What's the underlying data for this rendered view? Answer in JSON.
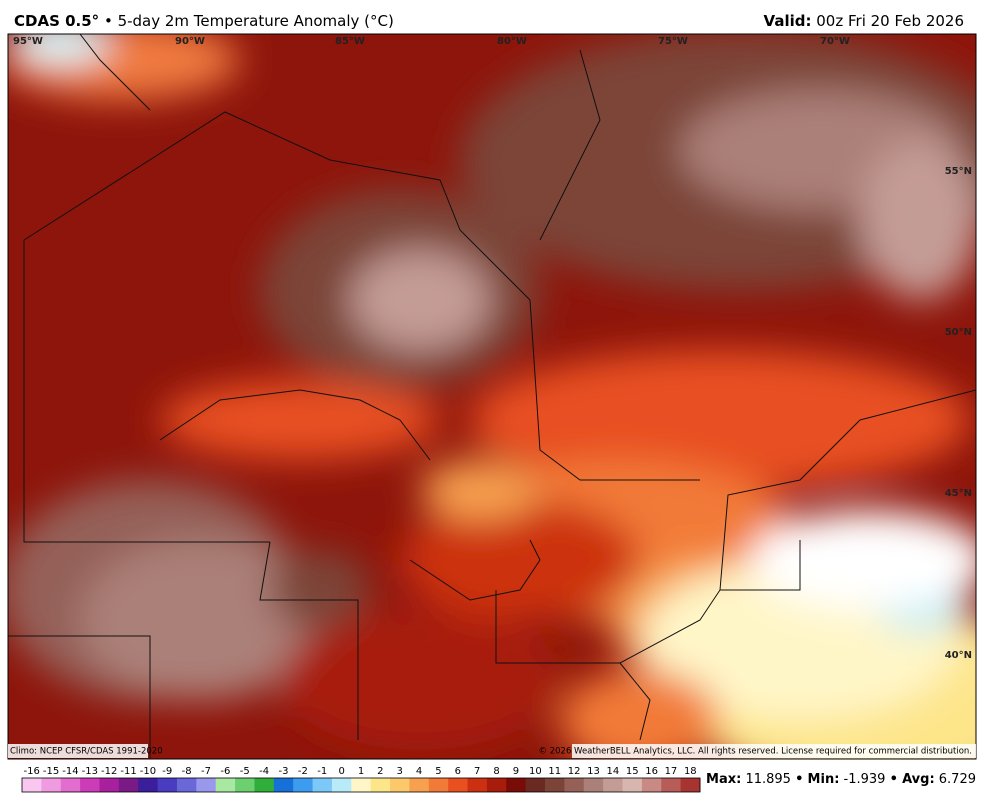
{
  "header": {
    "model": "CDAS 0.5°",
    "title": "• 5-day 2m Temperature Anomaly (°C)",
    "valid_label": "Valid:",
    "valid_time": "00z Fri 20 Feb 2026"
  },
  "map": {
    "lon_labels": [
      "95°W",
      "90°W",
      "85°W",
      "80°W",
      "75°W",
      "70°W"
    ],
    "lat_labels": [
      "55°N",
      "50°N",
      "45°N",
      "40°N"
    ],
    "climo": "Climo: NCEP CFSR/CDAS 1991-2020",
    "copyright": "© 2026 WeatherBELL Analytics, LLC. All rights reserved. License required for commercial distribution."
  },
  "colorbar": {
    "ticks": [
      -16,
      -15,
      -14,
      -13,
      -12,
      -11,
      -10,
      -9,
      -8,
      -7,
      -6,
      -5,
      -4,
      -3,
      -2,
      -1,
      0,
      1,
      2,
      3,
      4,
      5,
      6,
      7,
      8,
      9,
      10,
      11,
      12,
      13,
      14,
      15,
      16,
      17,
      18
    ],
    "colors": [
      "#f9c6f0",
      "#f09ae0",
      "#e36ccf",
      "#cc3cb8",
      "#a8209e",
      "#7a1a86",
      "#3a1e9c",
      "#4a3cc0",
      "#6a68d8",
      "#9a98ec",
      "#a8e8a0",
      "#6cd070",
      "#2fae3a",
      "#1670d8",
      "#3c9cf0",
      "#7cc8f8",
      "#b8eaf8",
      "#fff6c8",
      "#fde58a",
      "#fbc86a",
      "#f7a050",
      "#f27a38",
      "#e85020",
      "#cc3010",
      "#a81c0c",
      "#7a0c08",
      "#6a2a22",
      "#7c4438",
      "#946058",
      "#ab8078",
      "#c49c96",
      "#d8b6b0",
      "#c98a86",
      "#b85c58",
      "#a83432"
    ]
  },
  "stats": {
    "max_label": "Max:",
    "max": 11.895,
    "min_label": "Min:",
    "min": -1.939,
    "avg_label": "Avg:",
    "avg": 6.729,
    "separator": "•"
  }
}
